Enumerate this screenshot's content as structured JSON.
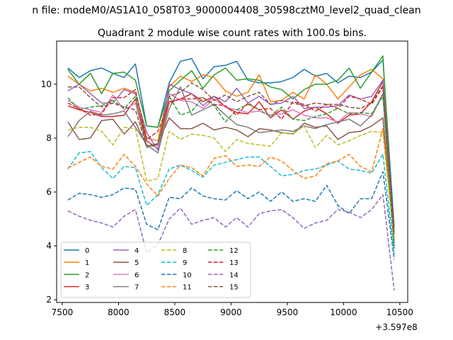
{
  "suptitle": "n file: modeM0/AS1A10_058T03_9000004408_30598cztM0_level2_quad_clean",
  "chart_data": {
    "type": "line",
    "title": "Quadrant 2 module wise count rates with 100.0s bins.",
    "xlabel": "",
    "ylabel": "",
    "offset_label": "+3.597e8",
    "xlim": [
      7450,
      10570
    ],
    "ylim": [
      1.9,
      11.6
    ],
    "x_ticks": [
      7500,
      8000,
      8500,
      9000,
      9500,
      10000,
      10500
    ],
    "x_tick_labels": [
      "7500",
      "8000",
      "8500",
      "9000",
      "9500",
      "10000",
      "10500"
    ],
    "y_ticks": [
      2,
      4,
      6,
      8,
      10
    ],
    "y_tick_labels": [
      "2",
      "4",
      "6",
      "8",
      "10"
    ],
    "grid": false,
    "legend": {
      "placement": "lower-left",
      "columns": 4
    },
    "x": [
      7550,
      7650,
      7750,
      7850,
      7950,
      8050,
      8150,
      8250,
      8350,
      8450,
      8550,
      8650,
      8750,
      8850,
      8950,
      9050,
      9150,
      9250,
      9350,
      9450,
      9550,
      9650,
      9750,
      9850,
      9950,
      10050,
      10150,
      10250,
      10350,
      10450
    ],
    "series": [
      {
        "name": "0",
        "color": "#1f77b4",
        "dash": false,
        "values": [
          10.6,
          10.25,
          10.5,
          10.6,
          10.4,
          10.25,
          10.75,
          8.45,
          8.4,
          10.05,
          10.85,
          10.95,
          10.2,
          10.65,
          10.7,
          10.85,
          10.15,
          10.05,
          10.05,
          10.1,
          10.25,
          10.55,
          10.3,
          10.4,
          10.05,
          10.3,
          10.25,
          10.45,
          10.9,
          4.7
        ]
      },
      {
        "name": "1",
        "color": "#ff7f0e",
        "dash": false,
        "values": [
          10.3,
          10.0,
          9.75,
          9.85,
          9.7,
          9.85,
          9.7,
          8.0,
          7.9,
          9.9,
          10.3,
          10.1,
          10.35,
          10.25,
          9.75,
          9.55,
          9.7,
          10.35,
          9.35,
          9.4,
          9.7,
          9.45,
          10.35,
          10.0,
          9.45,
          9.9,
          10.35,
          10.55,
          10.2,
          4.2
        ]
      },
      {
        "name": "2",
        "color": "#2ca02c",
        "dash": false,
        "values": [
          10.55,
          10.0,
          10.4,
          9.65,
          10.4,
          10.45,
          10.15,
          8.45,
          8.4,
          9.75,
          10.15,
          10.5,
          9.85,
          10.35,
          10.6,
          10.15,
          10.2,
          10.15,
          9.9,
          9.8,
          9.45,
          9.8,
          10.0,
          10.0,
          10.15,
          10.6,
          9.85,
          10.45,
          11.05,
          3.9
        ]
      },
      {
        "name": "3",
        "color": "#d62728",
        "dash": false,
        "values": [
          9.2,
          9.05,
          8.95,
          8.8,
          8.8,
          8.85,
          9.45,
          7.9,
          7.6,
          9.35,
          9.45,
          9.65,
          9.35,
          9.55,
          9.15,
          8.95,
          8.9,
          9.35,
          8.75,
          9.05,
          8.7,
          9.0,
          9.15,
          8.9,
          8.55,
          8.85,
          8.9,
          9.35,
          10.1,
          4.1
        ]
      },
      {
        "name": "4",
        "color": "#9467bd",
        "dash": false,
        "values": [
          9.75,
          10.0,
          9.65,
          9.3,
          9.3,
          9.8,
          9.65,
          8.2,
          7.55,
          10.0,
          9.8,
          9.65,
          9.2,
          9.55,
          9.35,
          9.85,
          9.3,
          9.55,
          9.25,
          9.3,
          9.55,
          9.1,
          9.15,
          9.15,
          9.2,
          9.6,
          9.45,
          9.55,
          10.15,
          4.4
        ]
      },
      {
        "name": "5",
        "color": "#8c564b",
        "dash": false,
        "values": [
          8.6,
          7.95,
          8.0,
          8.65,
          8.7,
          8.15,
          8.6,
          7.7,
          7.8,
          8.75,
          8.35,
          8.35,
          8.55,
          8.3,
          8.4,
          8.3,
          8.05,
          8.35,
          8.3,
          8.2,
          8.15,
          8.55,
          8.4,
          8.45,
          7.95,
          8.2,
          8.25,
          8.45,
          8.75,
          4.0
        ]
      },
      {
        "name": "6",
        "color": "#e377c2",
        "dash": false,
        "values": [
          9.4,
          9.15,
          9.05,
          8.95,
          9.6,
          9.05,
          9.3,
          7.75,
          7.65,
          9.65,
          9.4,
          9.35,
          9.1,
          9.45,
          9.15,
          9.05,
          8.95,
          9.0,
          8.85,
          8.9,
          9.05,
          8.85,
          8.75,
          8.75,
          8.6,
          8.95,
          8.9,
          8.8,
          9.65,
          3.9
        ]
      },
      {
        "name": "7",
        "color": "#7f7f7f",
        "dash": false,
        "values": [
          8.05,
          8.65,
          9.0,
          8.85,
          8.9,
          9.0,
          8.4,
          7.75,
          7.45,
          9.1,
          9.9,
          8.85,
          9.05,
          9.25,
          8.85,
          8.5,
          8.4,
          8.2,
          8.25,
          8.3,
          8.25,
          8.45,
          8.35,
          8.5,
          8.6,
          8.7,
          8.45,
          8.85,
          9.65,
          4.0
        ]
      },
      {
        "name": "8",
        "color": "#bcbd22",
        "dash": true,
        "values": [
          8.3,
          8.4,
          8.4,
          8.25,
          7.75,
          8.4,
          8.35,
          6.4,
          6.5,
          8.25,
          7.95,
          8.15,
          8.1,
          8.0,
          7.5,
          7.95,
          7.8,
          7.75,
          7.7,
          8.2,
          8.15,
          8.45,
          7.65,
          8.1,
          7.75,
          7.9,
          8.1,
          8.25,
          8.2,
          4.2
        ]
      },
      {
        "name": "9",
        "color": "#17becf",
        "dash": true,
        "values": [
          6.85,
          7.45,
          7.5,
          6.9,
          6.5,
          6.95,
          6.9,
          5.5,
          5.9,
          6.85,
          7.0,
          6.8,
          6.55,
          7.0,
          7.1,
          7.2,
          7.3,
          7.3,
          6.95,
          6.6,
          6.65,
          6.8,
          6.85,
          7.0,
          7.15,
          6.85,
          6.8,
          6.7,
          7.4,
          3.7
        ]
      },
      {
        "name": "10",
        "color": "#1f77b4",
        "dash": true,
        "values": [
          5.7,
          5.95,
          5.9,
          5.8,
          5.9,
          6.15,
          6.1,
          4.8,
          4.6,
          5.8,
          5.75,
          6.15,
          5.85,
          5.75,
          5.7,
          6.05,
          5.75,
          6.0,
          5.65,
          6.0,
          5.65,
          5.75,
          5.65,
          6.25,
          5.5,
          5.2,
          5.75,
          5.75,
          6.75,
          3.5
        ]
      },
      {
        "name": "11",
        "color": "#ff7f0e",
        "dash": true,
        "values": [
          6.9,
          7.1,
          7.3,
          6.95,
          6.85,
          7.4,
          6.95,
          6.3,
          5.85,
          6.5,
          7.0,
          6.9,
          6.6,
          7.25,
          7.35,
          6.95,
          7.0,
          6.95,
          7.3,
          7.15,
          6.8,
          6.5,
          6.6,
          7.05,
          7.15,
          7.4,
          6.95,
          6.75,
          8.35,
          4.3
        ]
      },
      {
        "name": "12",
        "color": "#2ca02c",
        "dash": true,
        "values": [
          9.5,
          9.05,
          9.15,
          9.2,
          9.4,
          9.1,
          9.55,
          7.65,
          7.8,
          9.55,
          8.85,
          9.0,
          9.5,
          9.2,
          8.6,
          9.05,
          9.25,
          9.05,
          8.8,
          9.15,
          8.7,
          8.65,
          8.8,
          8.9,
          9.1,
          8.9,
          8.95,
          8.9,
          9.55,
          3.9
        ]
      },
      {
        "name": "13",
        "color": "#d62728",
        "dash": true,
        "values": [
          9.3,
          9.1,
          8.85,
          8.9,
          9.5,
          9.5,
          9.8,
          7.95,
          8.25,
          9.3,
          9.45,
          9.45,
          9.5,
          9.25,
          9.2,
          8.85,
          9.3,
          9.05,
          9.1,
          8.7,
          9.35,
          9.25,
          9.0,
          9.25,
          9.1,
          9.55,
          9.45,
          9.25,
          9.9,
          4.5
        ]
      },
      {
        "name": "14",
        "color": "#9467bd",
        "dash": true,
        "values": [
          5.3,
          5.1,
          4.95,
          4.85,
          4.7,
          5.1,
          5.35,
          3.75,
          4.05,
          5.0,
          5.4,
          4.8,
          4.95,
          5.05,
          4.7,
          5.05,
          4.7,
          5.2,
          5.3,
          5.35,
          5.05,
          4.65,
          4.85,
          4.95,
          5.35,
          5.25,
          5.05,
          5.35,
          5.9,
          2.35
        ]
      },
      {
        "name": "15",
        "color": "#8c564b",
        "dash": true,
        "values": [
          9.9,
          9.9,
          9.5,
          9.15,
          9.3,
          9.15,
          9.05,
          7.7,
          7.75,
          9.55,
          9.7,
          10.05,
          9.8,
          9.4,
          9.6,
          9.35,
          9.55,
          9.7,
          9.25,
          9.4,
          9.3,
          9.2,
          9.3,
          9.25,
          9.25,
          9.15,
          9.1,
          9.3,
          9.95,
          4.5
        ]
      }
    ]
  }
}
